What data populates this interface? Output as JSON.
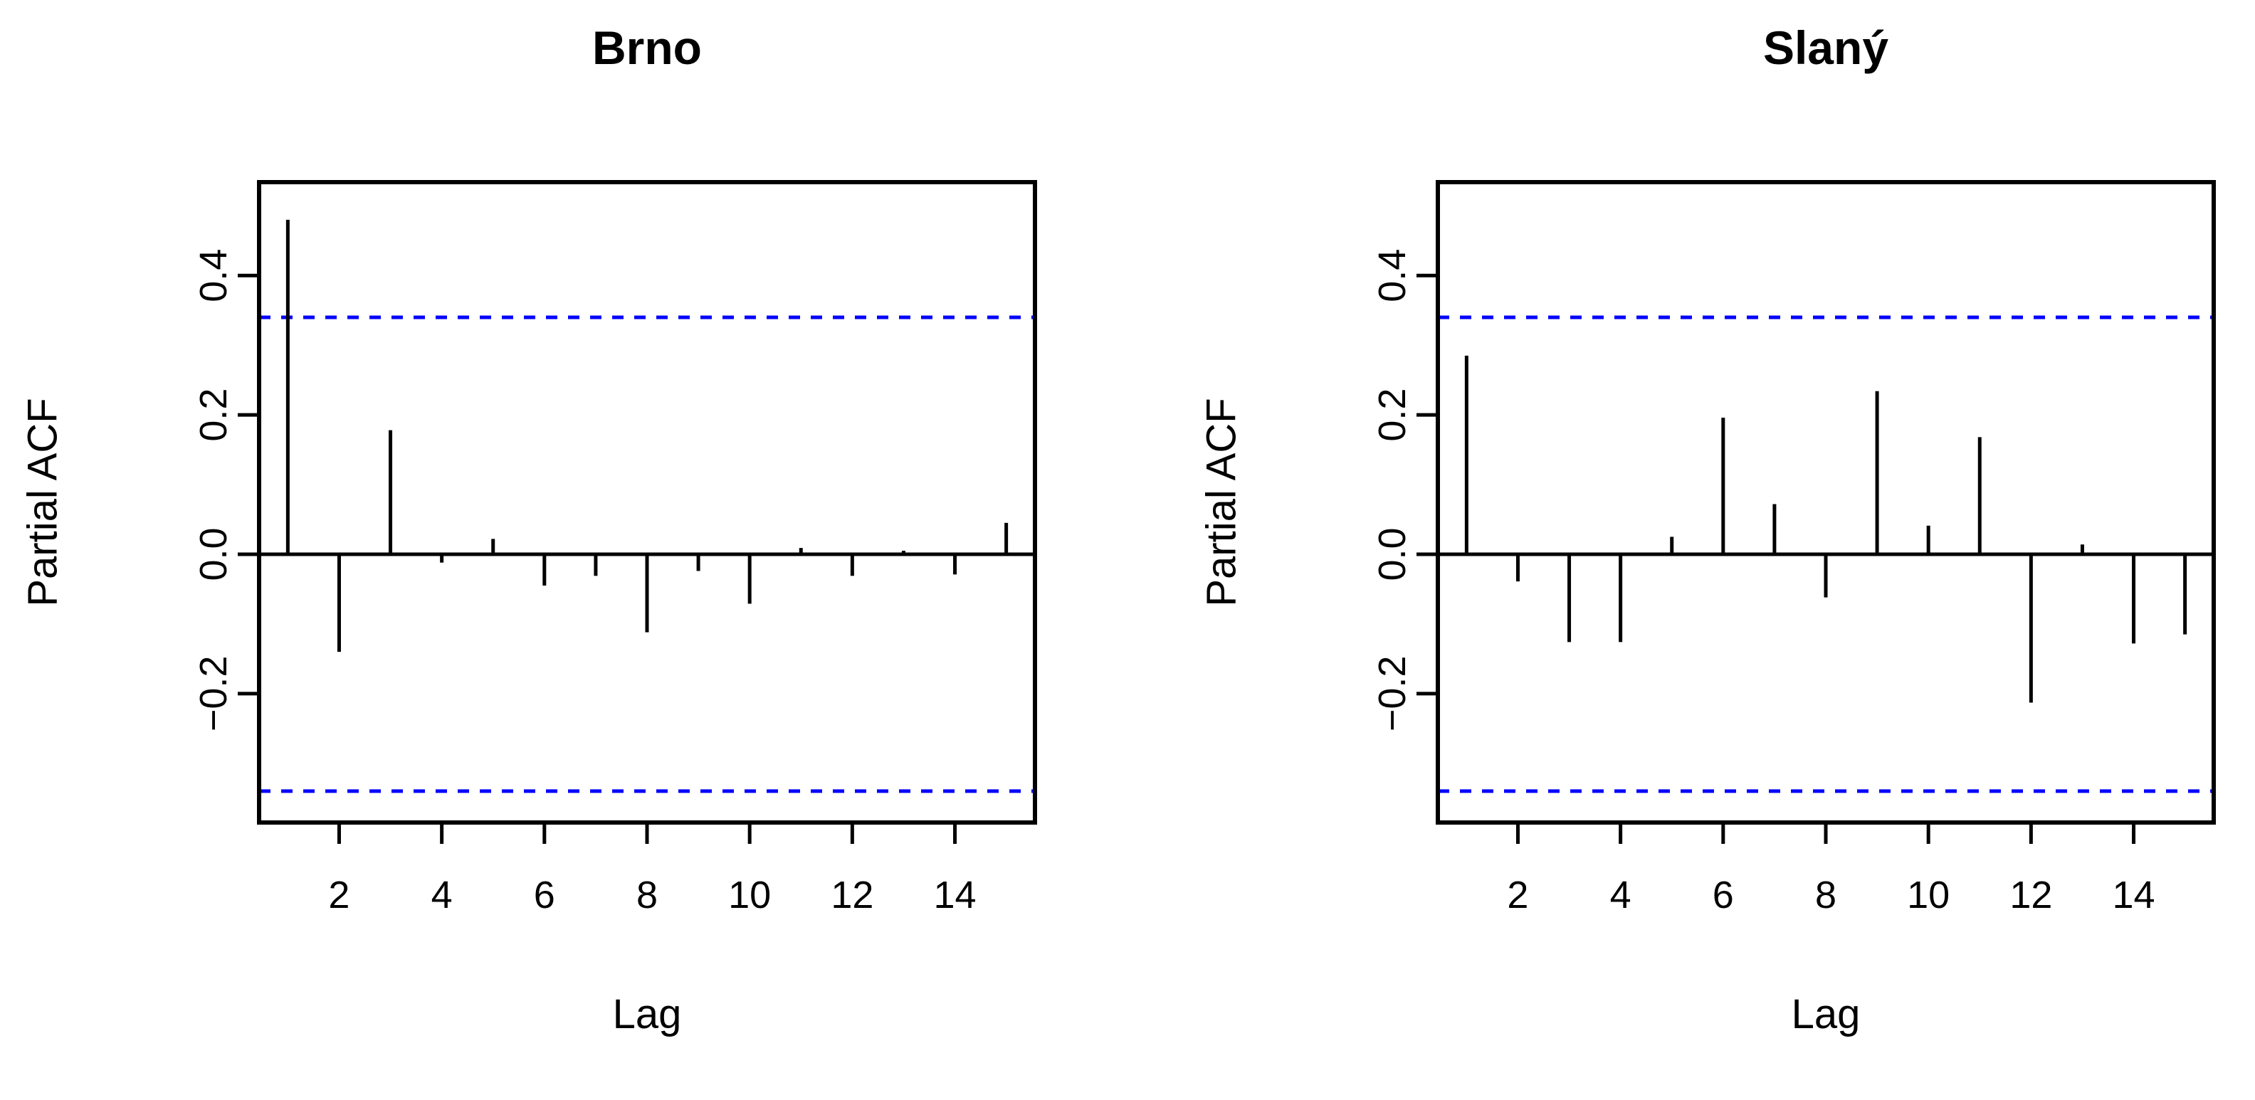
{
  "page": {
    "background": "#ffffff"
  },
  "colors": {
    "axis": "#000000",
    "bar": "#000000",
    "text": "#000000",
    "confidence_line": "#0000ff"
  },
  "chart_data": [
    {
      "type": "bar",
      "title": "Brno",
      "xlabel": "Lag",
      "ylabel": "Partial ACF",
      "x": [
        1,
        2,
        3,
        4,
        5,
        6,
        7,
        8,
        9,
        10,
        11,
        12,
        13,
        14,
        15
      ],
      "values": [
        0.48,
        -0.14,
        0.178,
        -0.012,
        0.022,
        -0.045,
        -0.031,
        -0.112,
        -0.024,
        -0.071,
        0.009,
        -0.031,
        0.005,
        -0.029,
        0.045
      ],
      "conf_interval_upper": 0.34,
      "conf_interval_lower": -0.34,
      "conf_line_style": "dashed",
      "x_ticks": [
        2,
        4,
        6,
        8,
        10,
        12,
        14
      ],
      "x_tick_labels": [
        "2",
        "4",
        "6",
        "8",
        "10",
        "12",
        "14"
      ],
      "y_ticks": [
        -0.2,
        0.0,
        0.2,
        0.4
      ],
      "y_tick_labels": [
        "−0.2",
        "0.0",
        "0.2",
        "0.4"
      ],
      "xlim": [
        0.44,
        15.56
      ],
      "ylim": [
        -0.385,
        0.534
      ],
      "grid": false,
      "legend": "none"
    },
    {
      "type": "bar",
      "title": "Slaný",
      "xlabel": "Lag",
      "ylabel": "Partial ACF",
      "x": [
        1,
        2,
        3,
        4,
        5,
        6,
        7,
        8,
        9,
        10,
        11,
        12,
        13,
        14,
        15
      ],
      "values": [
        0.285,
        -0.039,
        -0.126,
        -0.126,
        0.025,
        0.196,
        0.072,
        -0.062,
        0.234,
        0.041,
        0.168,
        -0.213,
        0.014,
        -0.128,
        -0.115
      ],
      "conf_interval_upper": 0.34,
      "conf_interval_lower": -0.34,
      "conf_line_style": "dashed",
      "x_ticks": [
        2,
        4,
        6,
        8,
        10,
        12,
        14
      ],
      "x_tick_labels": [
        "2",
        "4",
        "6",
        "8",
        "10",
        "12",
        "14"
      ],
      "y_ticks": [
        -0.2,
        0.0,
        0.2,
        0.4
      ],
      "y_tick_labels": [
        "−0.2",
        "0.0",
        "0.2",
        "0.4"
      ],
      "xlim": [
        0.44,
        15.56
      ],
      "ylim": [
        -0.385,
        0.534
      ],
      "grid": false,
      "legend": "none"
    }
  ]
}
